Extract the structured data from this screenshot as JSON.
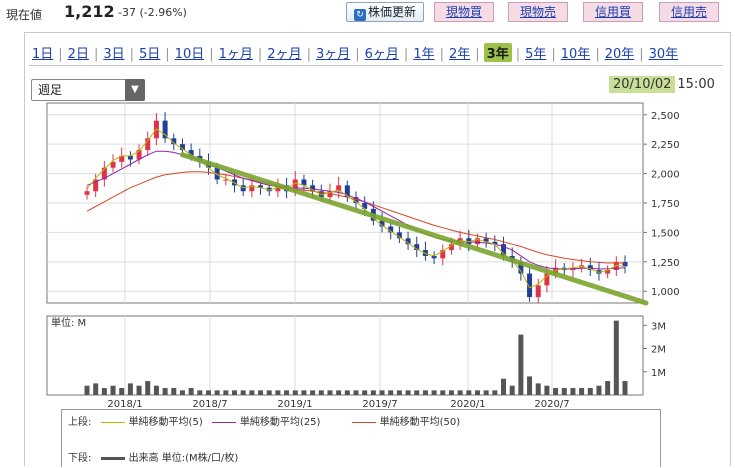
{
  "quote": {
    "price_label": "現在値",
    "price": "1,212",
    "change": "-37 (-2.96%)"
  },
  "actions": {
    "refresh": "株価更新",
    "genbutsu_kai": "現物買",
    "genbutsu_uri": "現物売",
    "shinyo_kai": "信用買",
    "shinyo_uri": "信用売"
  },
  "period_tabs": [
    {
      "label": "1日",
      "active": false
    },
    {
      "label": "2日",
      "active": false
    },
    {
      "label": "3日",
      "active": false
    },
    {
      "label": "5日",
      "active": false
    },
    {
      "label": "10日",
      "active": false
    },
    {
      "label": "1ヶ月",
      "active": false
    },
    {
      "label": "2ヶ月",
      "active": false
    },
    {
      "label": "3ヶ月",
      "active": false
    },
    {
      "label": "6ヶ月",
      "active": false
    },
    {
      "label": "1年",
      "active": false
    },
    {
      "label": "2年",
      "active": false
    },
    {
      "label": "3年",
      "active": true
    },
    {
      "label": "5年",
      "active": false
    },
    {
      "label": "10年",
      "active": false
    },
    {
      "label": "20年",
      "active": false
    },
    {
      "label": "30年",
      "active": false
    }
  ],
  "interval": "週足",
  "datetime": {
    "date": "20/10/02",
    "time": "15:00"
  },
  "colors": {
    "up": "#e0334a",
    "down": "#1f3f9a",
    "ma5": "#b8b800",
    "ma25": "#8e24aa",
    "ma50": "#d9472b",
    "trendline": "#7ca52e",
    "volume": "#555555",
    "highlight": "#9cc24a"
  },
  "chart_data": {
    "type": "candlestick",
    "x_tick_labels": [
      "2018/1",
      "2018/7",
      "2019/1",
      "2019/7",
      "2020/1",
      "2020/7"
    ],
    "price_axis_labels": [
      "2,500",
      "2,250",
      "2,000",
      "1,750",
      "1,500",
      "1,250",
      "1,000"
    ],
    "price_axis_values": [
      2500,
      2250,
      2000,
      1750,
      1500,
      1250,
      1000
    ],
    "volume_unit_label": "単位: M",
    "volume_axis_labels": [
      "3M",
      "2M",
      "1M"
    ],
    "volume_axis_values": [
      3,
      2,
      1
    ],
    "price_close_weekly_approx": [
      1850,
      1950,
      2050,
      2100,
      2150,
      2120,
      2200,
      2300,
      2450,
      2300,
      2250,
      2200,
      2150,
      2100,
      2050,
      1950,
      1950,
      1900,
      1850,
      1900,
      1880,
      1850,
      1900,
      1850,
      1950,
      1900,
      1850,
      1800,
      1850,
      1900,
      1800,
      1750,
      1700,
      1600,
      1550,
      1500,
      1450,
      1400,
      1350,
      1300,
      1280,
      1350,
      1400,
      1450,
      1400,
      1450,
      1420,
      1400,
      1300,
      1250,
      1150,
      950,
      1050,
      1150,
      1200,
      1180,
      1200,
      1220,
      1180,
      1150,
      1180,
      1249,
      1212
    ],
    "ma5_approx": [
      1870,
      1960,
      2040,
      2110,
      2150,
      2150,
      2190,
      2280,
      2380,
      2330,
      2260,
      2210,
      2160,
      2110,
      2050,
      1990,
      1960,
      1920,
      1880,
      1890,
      1880,
      1860,
      1880,
      1870,
      1920,
      1900,
      1860,
      1820,
      1840,
      1860,
      1810,
      1760,
      1700,
      1620,
      1560,
      1510,
      1460,
      1410,
      1360,
      1320,
      1300,
      1340,
      1390,
      1430,
      1420,
      1440,
      1420,
      1400,
      1320,
      1260,
      1170,
      1030,
      1060,
      1130,
      1180,
      1190,
      1200,
      1210,
      1190,
      1160,
      1180,
      1220,
      1210
    ],
    "ma25_approx": [
      1900,
      1930,
      1960,
      2000,
      2040,
      2080,
      2120,
      2160,
      2190,
      2190,
      2180,
      2160,
      2140,
      2110,
      2080,
      2050,
      2020,
      1990,
      1960,
      1940,
      1920,
      1900,
      1890,
      1880,
      1880,
      1875,
      1870,
      1860,
      1850,
      1840,
      1820,
      1790,
      1760,
      1720,
      1680,
      1640,
      1600,
      1560,
      1520,
      1490,
      1460,
      1440,
      1430,
      1425,
      1420,
      1415,
      1410,
      1400,
      1380,
      1350,
      1300,
      1250,
      1220,
      1200,
      1190,
      1190,
      1190,
      1195,
      1195,
      1190,
      1190,
      1195,
      1200
    ],
    "ma50_approx": [
      1680,
      1720,
      1760,
      1800,
      1840,
      1880,
      1910,
      1940,
      1970,
      1990,
      2000,
      2010,
      2015,
      2015,
      2010,
      2000,
      1990,
      1975,
      1960,
      1945,
      1930,
      1915,
      1900,
      1885,
      1870,
      1860,
      1850,
      1840,
      1830,
      1815,
      1800,
      1780,
      1760,
      1735,
      1710,
      1685,
      1660,
      1635,
      1610,
      1585,
      1560,
      1540,
      1520,
      1500,
      1485,
      1470,
      1455,
      1440,
      1420,
      1400,
      1380,
      1355,
      1330,
      1310,
      1295,
      1280,
      1270,
      1260,
      1250,
      1245,
      1240,
      1240,
      1240
    ],
    "trendline": {
      "from": {
        "x": "2018/6",
        "y": 2160
      },
      "to": {
        "x": "2020/10",
        "y": 900
      }
    },
    "volume_M_approx": [
      0.4,
      0.5,
      0.3,
      0.4,
      0.3,
      0.5,
      0.4,
      0.6,
      0.4,
      0.3,
      0.3,
      0.2,
      0.3,
      0.2,
      0.2,
      0.2,
      0.2,
      0.2,
      0.2,
      0.2,
      0.2,
      0.2,
      0.2,
      0.2,
      0.2,
      0.2,
      0.2,
      0.2,
      0.2,
      0.2,
      0.2,
      0.2,
      0.2,
      0.2,
      0.2,
      0.2,
      0.2,
      0.2,
      0.2,
      0.2,
      0.2,
      0.2,
      0.2,
      0.2,
      0.2,
      0.2,
      0.2,
      0.2,
      0.7,
      0.4,
      2.6,
      0.8,
      0.5,
      0.4,
      0.3,
      0.3,
      0.3,
      0.3,
      0.3,
      0.4,
      0.6,
      3.2,
      0.6
    ]
  },
  "legend": {
    "upper_label": "上段:",
    "ma5": "単純移動平均(5)",
    "ma25": "単純移動平均(25)",
    "ma50": "単純移動平均(50)",
    "lower_label": "下段:",
    "volume": "出来高 単位:(M株/口/枚)"
  }
}
